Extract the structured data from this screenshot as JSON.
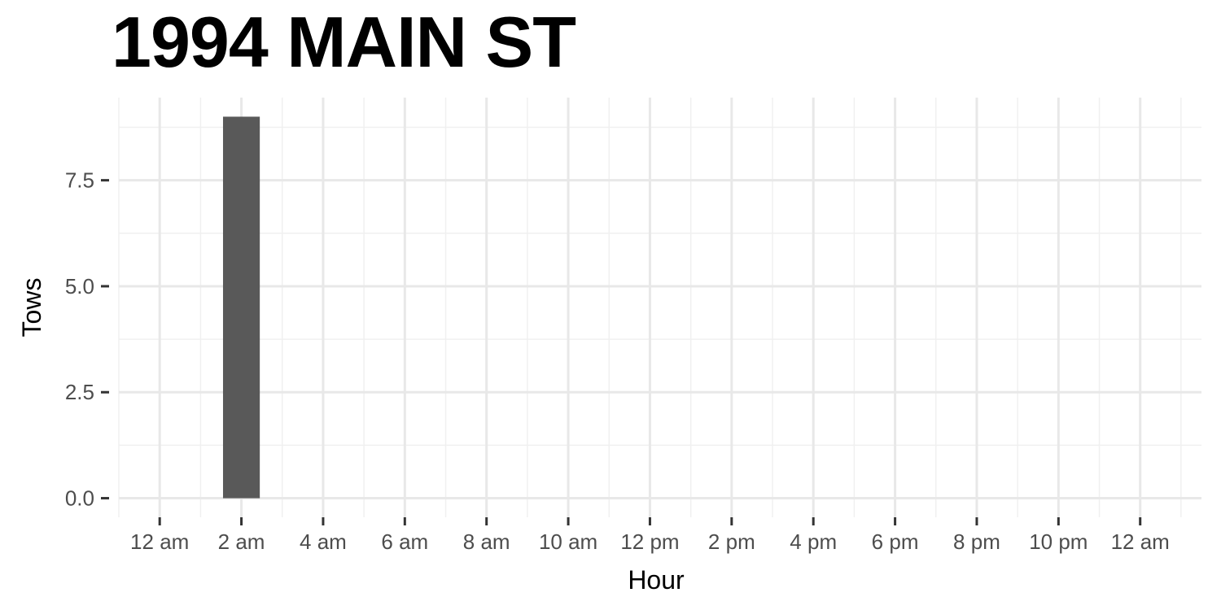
{
  "chart_data": {
    "type": "bar",
    "title": "1994 MAIN ST",
    "xlabel": "Hour",
    "ylabel": "Tows",
    "x_tick_labels": [
      "12 am",
      "2 am",
      "4 am",
      "6 am",
      "8 am",
      "10 am",
      "12 pm",
      "2 pm",
      "4 pm",
      "6 pm",
      "8 pm",
      "10 pm",
      "12 am"
    ],
    "x_tick_hours": [
      0,
      2,
      4,
      6,
      8,
      10,
      12,
      14,
      16,
      18,
      20,
      22,
      24
    ],
    "y_ticks": [
      0,
      2.5,
      5,
      7.5
    ],
    "y_tick_labels": [
      "0.0",
      "2.5",
      "5.0",
      "7.5"
    ],
    "xlim": [
      -1,
      25.5
    ],
    "ylim": [
      -0.45,
      9.45
    ],
    "grid": true,
    "bar_color": "#595959",
    "bars": [
      {
        "hour": 2,
        "value": 9
      }
    ]
  }
}
